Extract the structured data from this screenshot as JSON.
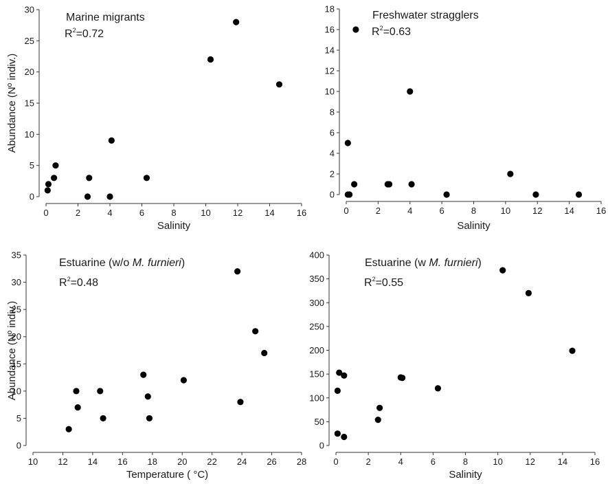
{
  "chart_data": [
    {
      "type": "scatter",
      "title_plain": "Marine migrants",
      "r2": "0.72",
      "xlabel": "Salinity",
      "ylabel": "Abundance (Nº indiv.)",
      "xlim": [
        0,
        16
      ],
      "ylim": [
        0,
        30
      ],
      "xticks": [
        0,
        2,
        4,
        6,
        8,
        10,
        12,
        14,
        16
      ],
      "yticks": [
        0,
        5,
        10,
        15,
        20,
        25,
        30
      ],
      "points": [
        {
          "x": 0.1,
          "y": 1
        },
        {
          "x": 0.15,
          "y": 2
        },
        {
          "x": 0.5,
          "y": 3
        },
        {
          "x": 0.6,
          "y": 5
        },
        {
          "x": 2.6,
          "y": 0
        },
        {
          "x": 2.7,
          "y": 3
        },
        {
          "x": 4.0,
          "y": 0
        },
        {
          "x": 4.1,
          "y": 9
        },
        {
          "x": 6.3,
          "y": 3
        },
        {
          "x": 10.3,
          "y": 22
        },
        {
          "x": 11.9,
          "y": 28
        },
        {
          "x": 14.6,
          "y": 18
        }
      ]
    },
    {
      "type": "scatter",
      "title_plain": "Freshwater stragglers",
      "r2": "0.63",
      "xlabel": "Salinity",
      "ylabel": "",
      "xlim": [
        0,
        16
      ],
      "ylim": [
        0,
        18
      ],
      "xticks": [
        0,
        2,
        4,
        6,
        8,
        10,
        12,
        14,
        16
      ],
      "yticks": [
        0,
        2,
        4,
        6,
        8,
        10,
        12,
        14,
        16,
        18
      ],
      "points": [
        {
          "x": 0.1,
          "y": 0
        },
        {
          "x": 0.2,
          "y": 0
        },
        {
          "x": 0.1,
          "y": 5
        },
        {
          "x": 0.5,
          "y": 1
        },
        {
          "x": 0.6,
          "y": 16
        },
        {
          "x": 2.6,
          "y": 1
        },
        {
          "x": 2.7,
          "y": 1
        },
        {
          "x": 4.0,
          "y": 10
        },
        {
          "x": 4.1,
          "y": 1
        },
        {
          "x": 6.3,
          "y": 0
        },
        {
          "x": 10.3,
          "y": 2
        },
        {
          "x": 11.9,
          "y": 0
        },
        {
          "x": 14.6,
          "y": 0
        }
      ]
    },
    {
      "type": "scatter",
      "title_plain": "Estuarine (w/o ",
      "title_italic": "M. furnieri",
      "title_end": ")",
      "r2": "0.48",
      "xlabel": "Temperature ( °C)",
      "ylabel": "Abundance (Nº indiv.)",
      "xlim": [
        10,
        28
      ],
      "ylim": [
        0,
        35
      ],
      "xticks": [
        10,
        12,
        14,
        16,
        18,
        20,
        22,
        24,
        26,
        28
      ],
      "yticks": [
        0,
        5,
        10,
        15,
        20,
        25,
        30,
        35
      ],
      "points": [
        {
          "x": 12.4,
          "y": 3
        },
        {
          "x": 12.9,
          "y": 10
        },
        {
          "x": 13.0,
          "y": 7
        },
        {
          "x": 14.5,
          "y": 10
        },
        {
          "x": 14.7,
          "y": 5
        },
        {
          "x": 17.4,
          "y": 13
        },
        {
          "x": 17.7,
          "y": 9
        },
        {
          "x": 17.8,
          "y": 5
        },
        {
          "x": 20.1,
          "y": 12
        },
        {
          "x": 23.7,
          "y": 32
        },
        {
          "x": 23.9,
          "y": 8
        },
        {
          "x": 24.9,
          "y": 21
        },
        {
          "x": 25.5,
          "y": 17
        }
      ]
    },
    {
      "type": "scatter",
      "title_plain": "Estuarine (w ",
      "title_italic": "M. furnieri",
      "title_end": ")",
      "r2": "0.55",
      "xlabel": "Salinity",
      "ylabel": "",
      "xlim": [
        0,
        16
      ],
      "ylim": [
        0,
        400
      ],
      "xticks": [
        0,
        2,
        4,
        6,
        8,
        10,
        12,
        14,
        16
      ],
      "yticks": [
        0,
        50,
        100,
        150,
        200,
        250,
        300,
        350,
        400
      ],
      "points": [
        {
          "x": 0.1,
          "y": 25
        },
        {
          "x": 0.1,
          "y": 115
        },
        {
          "x": 0.2,
          "y": 153
        },
        {
          "x": 0.5,
          "y": 147
        },
        {
          "x": 0.5,
          "y": 18
        },
        {
          "x": 2.6,
          "y": 54
        },
        {
          "x": 2.7,
          "y": 79
        },
        {
          "x": 4.0,
          "y": 143
        },
        {
          "x": 4.1,
          "y": 142
        },
        {
          "x": 6.3,
          "y": 120
        },
        {
          "x": 10.3,
          "y": 368
        },
        {
          "x": 11.9,
          "y": 320
        },
        {
          "x": 14.6,
          "y": 199
        }
      ]
    }
  ]
}
